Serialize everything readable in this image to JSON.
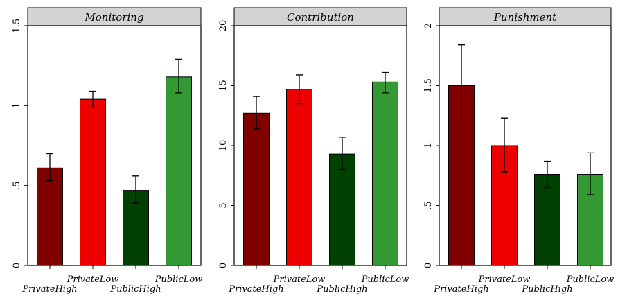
{
  "chart_data": [
    {
      "type": "bar",
      "title": "Monitoring",
      "categories": [
        "PrivateHigh",
        "PrivateLow",
        "PublicHigh",
        "PublicLow"
      ],
      "values": [
        0.61,
        1.04,
        0.47,
        1.18
      ],
      "error_low": [
        0.53,
        0.99,
        0.39,
        1.08
      ],
      "error_high": [
        0.7,
        1.09,
        0.56,
        1.29
      ],
      "ylim": [
        0,
        1.5
      ],
      "yticks": [
        0,
        0.5,
        1,
        1.5
      ],
      "ytick_labels": [
        "0",
        ".5",
        "1",
        "1.5"
      ],
      "colors": [
        "#800000",
        "#ee0000",
        "#004000",
        "#339933"
      ]
    },
    {
      "type": "bar",
      "title": "Contribution",
      "categories": [
        "PrivateHigh",
        "PrivateLow",
        "PublicHigh",
        "PublicLow"
      ],
      "values": [
        12.7,
        14.7,
        9.3,
        15.3
      ],
      "error_low": [
        11.4,
        13.5,
        8.0,
        14.4
      ],
      "error_high": [
        14.1,
        15.9,
        10.7,
        16.1
      ],
      "ylim": [
        0,
        20
      ],
      "yticks": [
        0,
        5,
        10,
        15,
        20
      ],
      "ytick_labels": [
        "0",
        "5",
        "10",
        "15",
        "20"
      ],
      "colors": [
        "#800000",
        "#ee0000",
        "#004000",
        "#339933"
      ]
    },
    {
      "type": "bar",
      "title": "Punishment",
      "categories": [
        "PrivateHigh",
        "PrivateLow",
        "PublicHigh",
        "PublicLow"
      ],
      "values": [
        1.5,
        1.0,
        0.76,
        0.76
      ],
      "error_low": [
        1.17,
        0.78,
        0.65,
        0.59
      ],
      "error_high": [
        1.84,
        1.23,
        0.87,
        0.94
      ],
      "ylim": [
        0,
        2
      ],
      "yticks": [
        0,
        0.5,
        1,
        1.5,
        2
      ],
      "ytick_labels": [
        "0",
        ".5",
        "1",
        "1.5",
        "2"
      ],
      "colors": [
        "#800000",
        "#ee0000",
        "#004000",
        "#339933"
      ]
    }
  ]
}
